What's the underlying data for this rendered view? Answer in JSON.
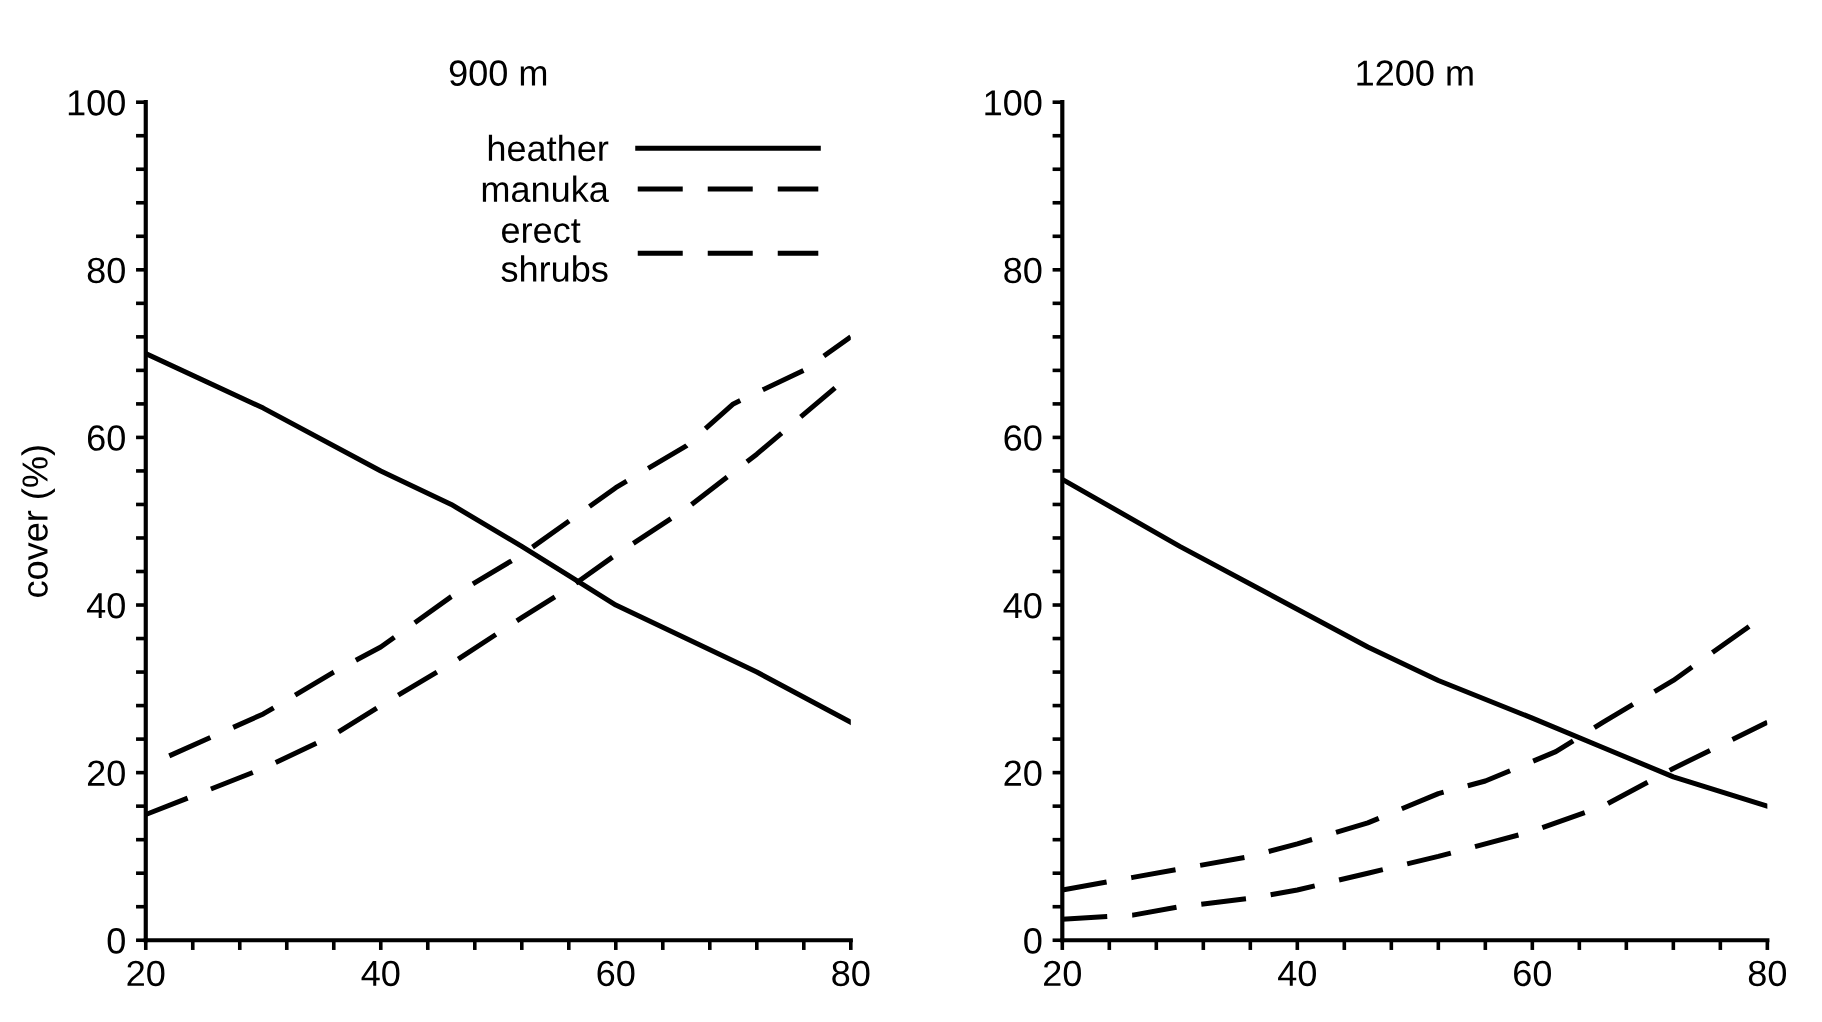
{
  "chart_data": [
    {
      "type": "line",
      "title": "900 m",
      "ylabel": "cover (%)",
      "xlim": [
        20,
        80
      ],
      "ylim": [
        0,
        100
      ],
      "xticks": [
        20,
        {
          "value": 24,
          "label": null
        },
        {
          "value": 28,
          "label": null
        },
        {
          "value": 32,
          "label": null
        },
        {
          "value": 36,
          "label": null
        },
        40,
        {
          "value": 44,
          "label": null
        },
        {
          "value": 48,
          "label": null
        },
        {
          "value": 52,
          "label": null
        },
        {
          "value": 56,
          "label": null
        },
        60,
        {
          "value": 64,
          "label": null
        },
        {
          "value": 68,
          "label": null
        },
        {
          "value": 72,
          "label": null
        },
        {
          "value": 76,
          "label": null
        },
        80
      ],
      "yticks": [
        0,
        {
          "value": 4,
          "label": null
        },
        {
          "value": 8,
          "label": null
        },
        {
          "value": 12,
          "label": null
        },
        {
          "value": 16,
          "label": null
        },
        20,
        {
          "value": 24,
          "label": null
        },
        {
          "value": 28,
          "label": null
        },
        {
          "value": 32,
          "label": null
        },
        {
          "value": 36,
          "label": null
        },
        40,
        {
          "value": 44,
          "label": null
        },
        {
          "value": 48,
          "label": null
        },
        {
          "value": 52,
          "label": null
        },
        {
          "value": 56,
          "label": null
        },
        60,
        {
          "value": 64,
          "label": null
        },
        {
          "value": 68,
          "label": null
        },
        {
          "value": 72,
          "label": null
        },
        {
          "value": 76,
          "label": null
        },
        80,
        {
          "value": 84,
          "label": null
        },
        {
          "value": 88,
          "label": null
        },
        {
          "value": 92,
          "label": null
        },
        {
          "value": 96,
          "label": null
        },
        100
      ],
      "legend": "top right",
      "grid": false,
      "series": [
        {
          "name": "heather",
          "color": "#000000",
          "line_style": "solid",
          "x": [
            20,
            30,
            40,
            46,
            52,
            56,
            60,
            66,
            72,
            80
          ],
          "values": [
            70,
            63.5,
            56,
            52,
            47,
            43.5,
            40,
            36,
            32,
            26
          ]
        },
        {
          "name": "manuka",
          "color": "#000000",
          "line_style": "dashed",
          "x": [
            20,
            30,
            36,
            40,
            46,
            52,
            56,
            60,
            66,
            72,
            80
          ],
          "values": [
            15,
            20.5,
            24.5,
            28,
            33,
            38.5,
            42,
            46,
            51.5,
            58,
            67.5
          ]
        },
        {
          "name": "erect\nshrubs",
          "color": "#000000",
          "line_style": "dashed",
          "x": [
            22,
            30,
            36,
            40,
            46,
            52,
            56,
            60,
            66,
            70,
            76,
            80
          ],
          "values": [
            22,
            27,
            32,
            35,
            41,
            46,
            50,
            54,
            59,
            64,
            68,
            72
          ]
        }
      ]
    },
    {
      "type": "line",
      "title": "1200 m",
      "xlim": [
        20,
        80
      ],
      "ylim": [
        0,
        100
      ],
      "xticks": [
        20,
        {
          "value": 24,
          "label": null
        },
        {
          "value": 28,
          "label": null
        },
        {
          "value": 32,
          "label": null
        },
        {
          "value": 36,
          "label": null
        },
        40,
        {
          "value": 44,
          "label": null
        },
        {
          "value": 48,
          "label": null
        },
        {
          "value": 52,
          "label": null
        },
        {
          "value": 56,
          "label": null
        },
        60,
        {
          "value": 64,
          "label": null
        },
        {
          "value": 68,
          "label": null
        },
        {
          "value": 72,
          "label": null
        },
        {
          "value": 76,
          "label": null
        },
        80
      ],
      "yticks": [
        0,
        {
          "value": 4,
          "label": null
        },
        {
          "value": 8,
          "label": null
        },
        {
          "value": 12,
          "label": null
        },
        {
          "value": 16,
          "label": null
        },
        20,
        {
          "value": 24,
          "label": null
        },
        {
          "value": 28,
          "label": null
        },
        {
          "value": 32,
          "label": null
        },
        {
          "value": 36,
          "label": null
        },
        40,
        {
          "value": 44,
          "label": null
        },
        {
          "value": 48,
          "label": null
        },
        {
          "value": 52,
          "label": null
        },
        {
          "value": 56,
          "label": null
        },
        60,
        {
          "value": 64,
          "label": null
        },
        {
          "value": 68,
          "label": null
        },
        {
          "value": 72,
          "label": null
        },
        {
          "value": 76,
          "label": null
        },
        80,
        {
          "value": 84,
          "label": null
        },
        {
          "value": 88,
          "label": null
        },
        {
          "value": 92,
          "label": null
        },
        {
          "value": 96,
          "label": null
        },
        100
      ],
      "grid": false,
      "series": [
        {
          "color": "#000000",
          "line_style": "solid",
          "x": [
            20,
            30,
            40,
            46,
            52,
            60,
            66,
            72,
            80
          ],
          "values": [
            55,
            47,
            39.5,
            35,
            31,
            26.5,
            23,
            19.5,
            16
          ]
        },
        {
          "color": "#000000",
          "line_style": "dashed",
          "x": [
            20,
            26,
            30,
            36,
            40,
            46,
            52,
            56,
            60,
            66,
            72,
            80
          ],
          "values": [
            2.5,
            3,
            4,
            5,
            6,
            8,
            10,
            11.5,
            13,
            16,
            20.5,
            26
          ]
        },
        {
          "color": "#000000",
          "line_style": "dashed",
          "x": [
            20,
            26,
            30,
            36,
            40,
            46,
            52,
            56,
            62,
            66,
            72,
            80
          ],
          "values": [
            6,
            7.5,
            8.5,
            10,
            11.5,
            14,
            17.5,
            19,
            22.5,
            26,
            31,
            39
          ]
        }
      ]
    }
  ]
}
